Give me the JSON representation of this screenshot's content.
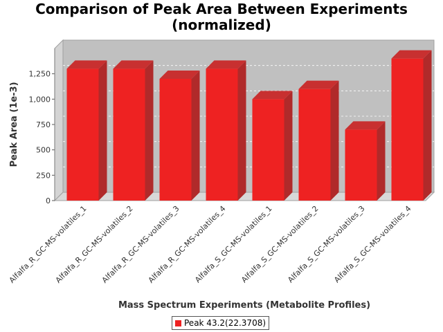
{
  "chart_data": {
    "type": "bar",
    "title": [
      "Comparison of Peak Area Between Experiments",
      "(normalized)"
    ],
    "xlabel": "Mass Spectrum Experiments (Metabolite Profiles)",
    "ylabel": "Peak Area (1e-3)",
    "ylim": [
      0,
      1500
    ],
    "yticks": [
      0,
      250,
      500,
      750,
      1000,
      1250
    ],
    "ytick_labels": [
      "0",
      "250",
      "500",
      "750",
      "1,000",
      "1,250"
    ],
    "grid": true,
    "legend_position": "bottom",
    "categories": [
      "Alfalfa_R_GC-MS-volatiles_1",
      "Alfalfa_R_GC-MS-volatiles_2",
      "Alfalfa_R_GC-MS-volatiles_3",
      "Alfalfa_R_GC-MS-volatiles_4",
      "Alfalfa_S_GC-MS-volatiles_1",
      "Alfalfa_S_GC-MS-volatiles_2",
      "Alfalfa_S_GC-MS-volatiles_3",
      "Alfalfa_S_GC-MS-volatiles_4"
    ],
    "series": [
      {
        "name": "Peak 43.2(22.3708)",
        "color": "#ee2222",
        "values": [
          1300,
          1300,
          1200,
          1300,
          1000,
          1100,
          700,
          1400
        ]
      }
    ]
  }
}
